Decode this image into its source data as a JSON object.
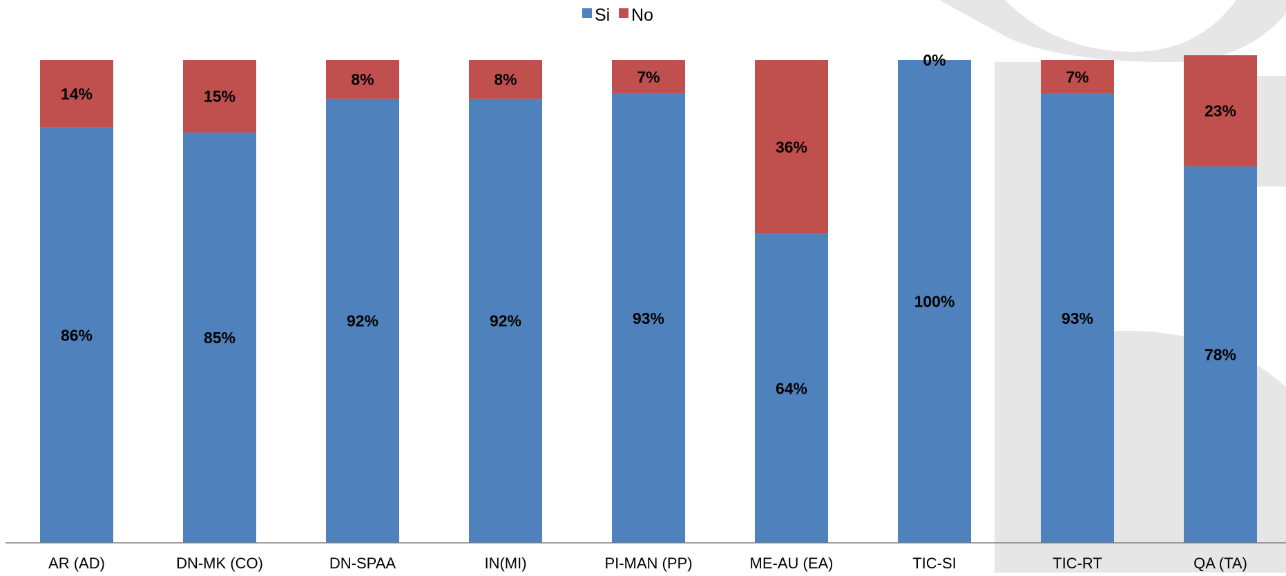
{
  "colors": {
    "si": "#4F81BD",
    "no": "#C0504D",
    "axis": "#808080",
    "watermark": "#E6E6E6"
  },
  "legend": {
    "position": "top-center",
    "items": [
      {
        "label": "Si",
        "color": "#4F81BD"
      },
      {
        "label": "No",
        "color": "#C0504D"
      }
    ]
  },
  "chart_data": {
    "type": "bar",
    "stacked": true,
    "categories": [
      "AR (AD)",
      "DN-MK (CO)",
      "DN-SPAA",
      "IN(MI)",
      "PI-MAN (PP)",
      "ME-AU (EA)",
      "TIC-SI",
      "TIC-RT",
      "QA  (TA)"
    ],
    "series": [
      {
        "name": "Si",
        "values": [
          86,
          85,
          92,
          92,
          93,
          64,
          100,
          93,
          78
        ],
        "labels": [
          "86%",
          "85%",
          "92%",
          "92%",
          "93%",
          "64%",
          "100%",
          "93%",
          "78%"
        ]
      },
      {
        "name": "No",
        "values": [
          14,
          15,
          8,
          8,
          7,
          36,
          0,
          7,
          23
        ],
        "labels": [
          "14%",
          "15%",
          "8%",
          "8%",
          "7%",
          "36%",
          "0%",
          "7%",
          "23%"
        ]
      }
    ],
    "ylim": [
      0,
      100
    ],
    "grid": false,
    "value_format": "percent"
  }
}
